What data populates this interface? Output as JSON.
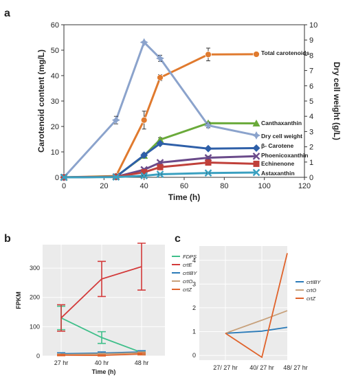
{
  "panels": {
    "a": "a",
    "b": "b",
    "c": "c"
  },
  "chart_data": [
    {
      "id": "a",
      "type": "line",
      "ylabel": "Carotenoid content (mg/L)",
      "y2label": "Dry cell weight (g/L)",
      "xlabel": "Time (h)",
      "xlim": [
        0,
        120
      ],
      "xticks": [
        0,
        20,
        40,
        60,
        80,
        100,
        120
      ],
      "ylim": [
        0,
        60
      ],
      "yticks": [
        0,
        10,
        20,
        30,
        40,
        50,
        60
      ],
      "y2lim": [
        0,
        10
      ],
      "y2ticks": [
        0,
        1,
        2,
        3,
        4,
        5,
        6,
        7,
        8,
        9,
        10
      ],
      "x": [
        0,
        26,
        40,
        48,
        72,
        96
      ],
      "series": [
        {
          "name": "Total carotenoids",
          "color": "#e07a2e",
          "marker": "circle",
          "axis": "left",
          "values": [
            0,
            0.5,
            22.5,
            39.2,
            48.3,
            48.4
          ],
          "err": [
            0,
            0,
            3.5,
            1.2,
            2.5,
            0
          ]
        },
        {
          "name": "Canthaxanthin",
          "color": "#6aaa3a",
          "marker": "triangle",
          "axis": "left",
          "values": [
            0,
            0.3,
            8.5,
            14.8,
            21.3,
            21.2
          ],
          "err": [
            0,
            0,
            1,
            0.8,
            0.5,
            0
          ]
        },
        {
          "name": "Dry cell weight",
          "color": "#8ba3cc",
          "marker": "star",
          "axis": "right",
          "values": [
            0,
            3.75,
            8.85,
            7.8,
            3.4,
            2.75
          ],
          "err": [
            0,
            0.25,
            0,
            0.2,
            0.15,
            0
          ]
        },
        {
          "name": "β- Carotene",
          "color": "#2e5fa8",
          "marker": "diamond",
          "axis": "left",
          "values": [
            0,
            0.2,
            8.7,
            13.3,
            11.3,
            11.5
          ],
          "err": [
            0,
            0,
            0.8,
            0.5,
            0.5,
            0
          ]
        },
        {
          "name": "Phoenicoxanthin",
          "color": "#6a4a8a",
          "marker": "x",
          "axis": "left",
          "values": [
            0,
            0.2,
            3,
            5.8,
            7.7,
            8.3
          ],
          "err": [
            0,
            0,
            0.5,
            0.5,
            0.6,
            0
          ]
        },
        {
          "name": "Echinenone",
          "color": "#c0403a",
          "marker": "square",
          "axis": "left",
          "values": [
            0,
            0.2,
            2,
            4,
            5.8,
            5.3
          ],
          "err": [
            0,
            0,
            0.3,
            0.4,
            0.5,
            0
          ]
        },
        {
          "name": "Astaxanthin",
          "color": "#3aa0c0",
          "marker": "x",
          "axis": "left",
          "values": [
            0,
            0.1,
            0.6,
            1.2,
            1.7,
            1.9
          ],
          "err": [
            0,
            0,
            0.1,
            0.2,
            0.2,
            0
          ]
        }
      ]
    },
    {
      "id": "b",
      "type": "line",
      "ylabel": "FPKM",
      "xlabel": "Time (h)",
      "categories": [
        "27 hr",
        "40 hr",
        "48 hr"
      ],
      "ylim": [
        0,
        380
      ],
      "yticks": [
        0,
        100,
        200,
        300
      ],
      "grid": true,
      "legend": "right",
      "series": [
        {
          "name": "FDPS",
          "color": "#3fbf8a",
          "values": [
            130,
            63,
            12
          ],
          "err": [
            40,
            20,
            5
          ]
        },
        {
          "name": "crtE",
          "color": "#d33a3a",
          "values": [
            130,
            263,
            305
          ],
          "err": [
            45,
            60,
            80
          ]
        },
        {
          "name": "crtIBY",
          "color": "#2a7ab8",
          "values": [
            8,
            10,
            14
          ],
          "err": [
            3,
            4,
            4
          ]
        },
        {
          "name": "crtO",
          "color": "#c7a07a",
          "values": [
            5,
            7,
            11
          ],
          "err": [
            2,
            2,
            3
          ]
        },
        {
          "name": "crtZ",
          "color": "#e0622a",
          "values": [
            3,
            2,
            7
          ],
          "err": [
            2,
            2,
            3
          ]
        }
      ]
    },
    {
      "id": "c",
      "type": "line",
      "categories": [
        "27/ 27 hr",
        "40/ 27 hr",
        "48/ 27 hr"
      ],
      "ylim": [
        -0.2,
        4.6
      ],
      "yticks": [
        0,
        1,
        2,
        3,
        4
      ],
      "grid": true,
      "legend": "right",
      "series": [
        {
          "name": "crtIBY",
          "color": "#2a7ab8",
          "values": [
            0.93,
            1.02,
            1.18
          ]
        },
        {
          "name": "crtO",
          "color": "#c7a07a",
          "values": [
            0.93,
            1.48,
            1.88
          ]
        },
        {
          "name": "crtZ",
          "color": "#e0622a",
          "values": [
            0.93,
            -0.08,
            4.3
          ]
        }
      ]
    }
  ]
}
